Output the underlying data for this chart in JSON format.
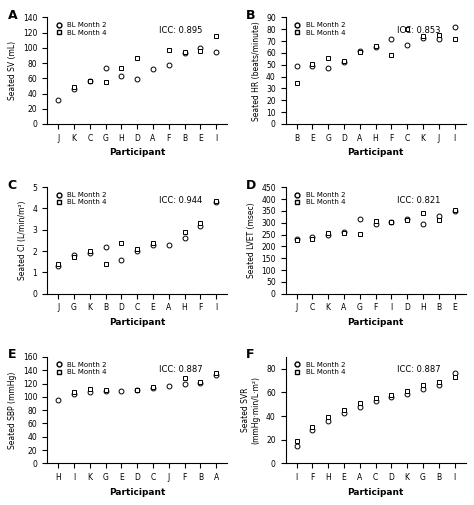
{
  "subplots": [
    {
      "label": "A",
      "icc": "ICC: 0.895",
      "ylabel": "Seated SV (mL)",
      "participants": [
        "J",
        "K",
        "C",
        "G",
        "H",
        "D",
        "A",
        "F",
        "B",
        "E",
        "I"
      ],
      "month2": [
        32,
        46,
        57,
        74,
        63,
        59,
        72,
        77,
        93,
        100,
        95
      ],
      "month4": [
        null,
        49,
        56,
        55,
        73,
        87,
        null,
        97,
        95,
        96,
        115
      ],
      "ylim": [
        0,
        140
      ],
      "yticks": [
        0,
        20,
        40,
        60,
        80,
        100,
        120,
        140
      ]
    },
    {
      "label": "B",
      "icc": "ICC: 0.853",
      "ylabel": "Seated HR (beats/minute)",
      "participants": [
        "B",
        "E",
        "G",
        "D",
        "A",
        "H",
        "F",
        "C",
        "K",
        "J",
        "I"
      ],
      "month2": [
        49,
        49,
        47,
        52,
        62,
        65,
        72,
        67,
        73,
        72,
        82
      ],
      "month4": [
        35,
        51,
        56,
        53,
        61,
        66,
        58,
        80,
        74,
        75,
        72
      ],
      "ylim": [
        0,
        90
      ],
      "yticks": [
        0,
        10,
        20,
        30,
        40,
        50,
        60,
        70,
        80,
        90
      ]
    },
    {
      "label": "C",
      "icc": "ICC: 0.944",
      "ylabel": "Seated CI (L/min/m²)",
      "participants": [
        "J",
        "G",
        "K",
        "B",
        "D",
        "C",
        "E",
        "A",
        "H",
        "F",
        "I"
      ],
      "month2": [
        1.3,
        1.8,
        1.9,
        2.2,
        1.6,
        2.0,
        2.3,
        2.3,
        2.6,
        3.2,
        4.3
      ],
      "month4": [
        1.4,
        1.7,
        2.0,
        1.4,
        2.4,
        2.1,
        2.4,
        null,
        2.9,
        3.3,
        4.35
      ],
      "ylim": [
        0,
        5
      ],
      "yticks": [
        0,
        1,
        2,
        3,
        4,
        5
      ]
    },
    {
      "label": "D",
      "icc": "ICC: 0.821",
      "ylabel": "Seated LVET (msec)",
      "participants": [
        "J",
        "C",
        "K",
        "A",
        "G",
        "F",
        "I",
        "D",
        "H",
        "B",
        "E"
      ],
      "month2": [
        230,
        235,
        250,
        260,
        315,
        295,
        305,
        315,
        295,
        330,
        350
      ],
      "month4": [
        225,
        230,
        255,
        255,
        250,
        310,
        300,
        310,
        340,
        310,
        350
      ],
      "ylim": [
        0,
        450
      ],
      "yticks": [
        0,
        50,
        100,
        150,
        200,
        250,
        300,
        350,
        400,
        450
      ]
    },
    {
      "label": "E",
      "icc": "ICC: 0.887",
      "ylabel": "Seated SBP (mmHg)",
      "participants": [
        "H",
        "I",
        "K",
        "G",
        "E",
        "D",
        "C",
        "J",
        "F",
        "B",
        "A"
      ],
      "month2": [
        95,
        103,
        108,
        108,
        108,
        110,
        112,
        115,
        118,
        120,
        133
      ],
      "month4": [
        null,
        108,
        111,
        110,
        null,
        110,
        114,
        null,
        127,
        122,
        135
      ],
      "ylim": [
        0,
        160
      ],
      "yticks": [
        0,
        20,
        40,
        60,
        80,
        100,
        120,
        140,
        160
      ]
    },
    {
      "label": "F",
      "icc": "ICC: 0.887",
      "ylabel": "Seated SVR (mmHg·min/L/m²)",
      "participants": [
        "I",
        "F",
        "H",
        "E",
        "A",
        "C",
        "D",
        "K",
        "G",
        "B",
        "I"
      ],
      "month2": [
        15,
        28,
        36,
        43,
        48,
        53,
        56,
        59,
        63,
        66,
        76
      ],
      "month4": [
        19,
        31,
        39,
        45,
        51,
        55,
        58,
        61,
        66,
        69,
        73
      ],
      "ylim": [
        0,
        90
      ],
      "yticks": [
        0,
        20,
        40,
        60,
        80
      ]
    }
  ]
}
